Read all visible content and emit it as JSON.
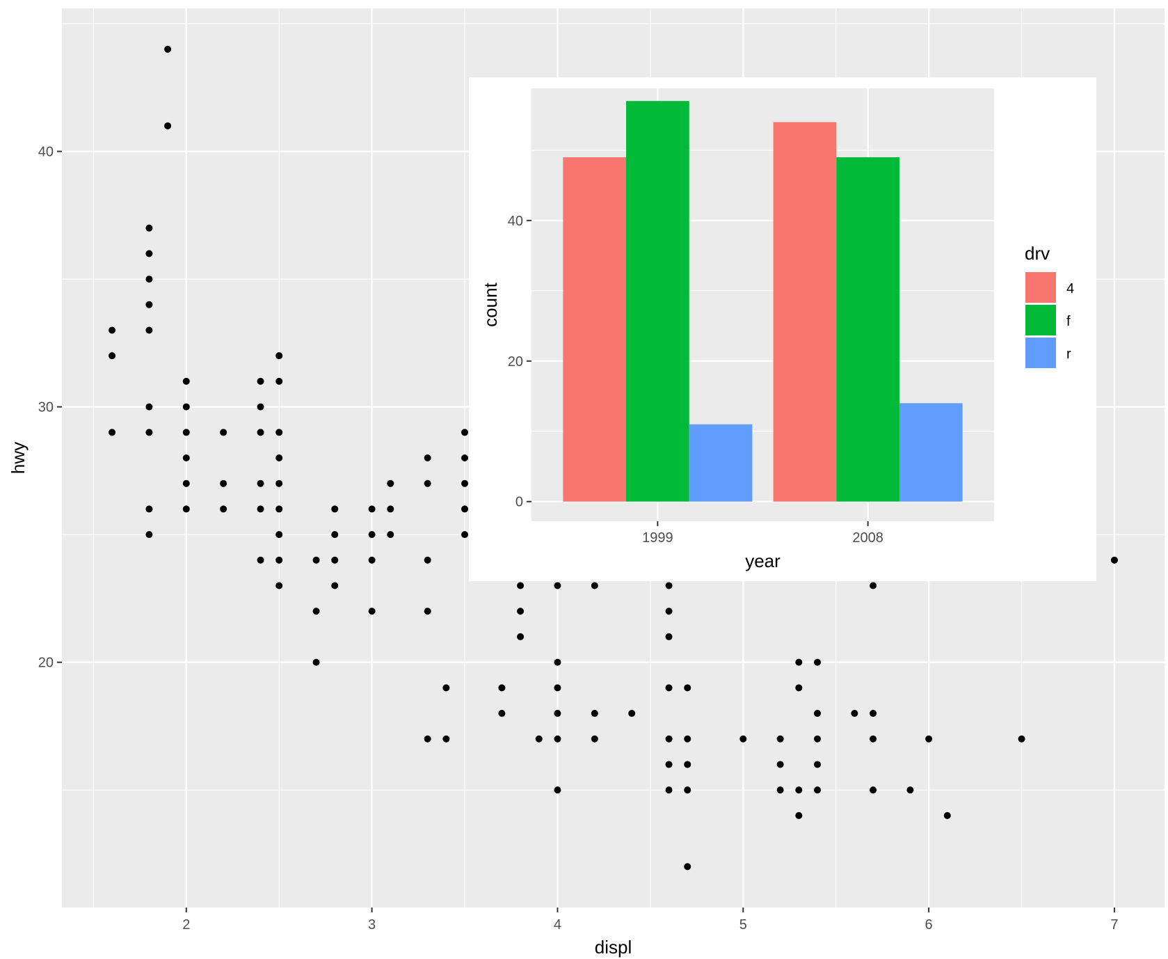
{
  "chart_data": [
    {
      "type": "scatter",
      "xlabel": "displ",
      "ylabel": "hwy",
      "xlim": [
        1.33,
        7.27
      ],
      "ylim": [
        10.4,
        45.6
      ],
      "xticks": [
        2,
        3,
        4,
        5,
        6,
        7
      ],
      "yticks": [
        20,
        30,
        40
      ],
      "grid": true,
      "point_color": "#000000",
      "points": [
        [
          1.6,
          33
        ],
        [
          1.6,
          32
        ],
        [
          1.6,
          29
        ],
        [
          1.8,
          37
        ],
        [
          1.8,
          36
        ],
        [
          1.8,
          35
        ],
        [
          1.8,
          34
        ],
        [
          1.8,
          33
        ],
        [
          1.8,
          30
        ],
        [
          1.8,
          29
        ],
        [
          1.8,
          26
        ],
        [
          1.8,
          25
        ],
        [
          1.9,
          44
        ],
        [
          1.9,
          41
        ],
        [
          2.0,
          31
        ],
        [
          2.0,
          30
        ],
        [
          2.0,
          29
        ],
        [
          2.0,
          28
        ],
        [
          2.0,
          27
        ],
        [
          2.0,
          26
        ],
        [
          2.2,
          29
        ],
        [
          2.2,
          27
        ],
        [
          2.2,
          26
        ],
        [
          2.4,
          31
        ],
        [
          2.4,
          30
        ],
        [
          2.4,
          29
        ],
        [
          2.4,
          27
        ],
        [
          2.4,
          26
        ],
        [
          2.4,
          24
        ],
        [
          2.5,
          32
        ],
        [
          2.5,
          31
        ],
        [
          2.5,
          29
        ],
        [
          2.5,
          28
        ],
        [
          2.5,
          27
        ],
        [
          2.5,
          26
        ],
        [
          2.5,
          25
        ],
        [
          2.5,
          24
        ],
        [
          2.5,
          23
        ],
        [
          2.7,
          24
        ],
        [
          2.7,
          22
        ],
        [
          2.7,
          20
        ],
        [
          2.8,
          26
        ],
        [
          2.8,
          25
        ],
        [
          2.8,
          24
        ],
        [
          2.8,
          23
        ],
        [
          3.0,
          26
        ],
        [
          3.0,
          25
        ],
        [
          3.0,
          24
        ],
        [
          3.0,
          22
        ],
        [
          3.1,
          27
        ],
        [
          3.1,
          26
        ],
        [
          3.1,
          25
        ],
        [
          3.3,
          28
        ],
        [
          3.3,
          27
        ],
        [
          3.3,
          24
        ],
        [
          3.3,
          22
        ],
        [
          3.3,
          17
        ],
        [
          3.4,
          19
        ],
        [
          3.4,
          17
        ],
        [
          3.5,
          29
        ],
        [
          3.5,
          28
        ],
        [
          3.5,
          27
        ],
        [
          3.5,
          26
        ],
        [
          3.5,
          25
        ],
        [
          3.7,
          19
        ],
        [
          3.7,
          18
        ],
        [
          3.8,
          23
        ],
        [
          3.8,
          22
        ],
        [
          3.8,
          21
        ],
        [
          3.9,
          17
        ],
        [
          4.0,
          23
        ],
        [
          4.0,
          20
        ],
        [
          4.0,
          19
        ],
        [
          4.0,
          18
        ],
        [
          4.0,
          17
        ],
        [
          4.0,
          15
        ],
        [
          4.2,
          23
        ],
        [
          4.2,
          18
        ],
        [
          4.2,
          17
        ],
        [
          4.4,
          18
        ],
        [
          4.6,
          23
        ],
        [
          4.6,
          22
        ],
        [
          4.6,
          21
        ],
        [
          4.6,
          19
        ],
        [
          4.6,
          17
        ],
        [
          4.6,
          16
        ],
        [
          4.6,
          15
        ],
        [
          4.7,
          19
        ],
        [
          4.7,
          17
        ],
        [
          4.7,
          16
        ],
        [
          4.7,
          15
        ],
        [
          4.7,
          12
        ],
        [
          5.0,
          17
        ],
        [
          5.2,
          17
        ],
        [
          5.2,
          16
        ],
        [
          5.2,
          15
        ],
        [
          5.3,
          20
        ],
        [
          5.3,
          19
        ],
        [
          5.3,
          15
        ],
        [
          5.3,
          14
        ],
        [
          5.4,
          20
        ],
        [
          5.4,
          18
        ],
        [
          5.4,
          17
        ],
        [
          5.4,
          16
        ],
        [
          5.4,
          15
        ],
        [
          5.6,
          18
        ],
        [
          5.7,
          23
        ],
        [
          5.7,
          18
        ],
        [
          5.7,
          17
        ],
        [
          5.7,
          15
        ],
        [
          5.9,
          15
        ],
        [
          6.0,
          17
        ],
        [
          6.1,
          14
        ],
        [
          6.5,
          17
        ],
        [
          7.0,
          24
        ]
      ]
    },
    {
      "type": "bar",
      "title": "",
      "xlabel": "year",
      "ylabel": "count",
      "categories": [
        "1999",
        "2008"
      ],
      "ylim": [
        -2.8,
        58.8
      ],
      "yticks": [
        0,
        20,
        40
      ],
      "grid": true,
      "legend": {
        "title": "drv",
        "position": "right"
      },
      "series": [
        {
          "name": "4",
          "color": "#F8766D",
          "values": [
            49,
            54
          ]
        },
        {
          "name": "f",
          "color": "#00BA38",
          "values": [
            57,
            49
          ]
        },
        {
          "name": "r",
          "color": "#619CFF",
          "values": [
            11,
            14
          ]
        }
      ]
    }
  ]
}
